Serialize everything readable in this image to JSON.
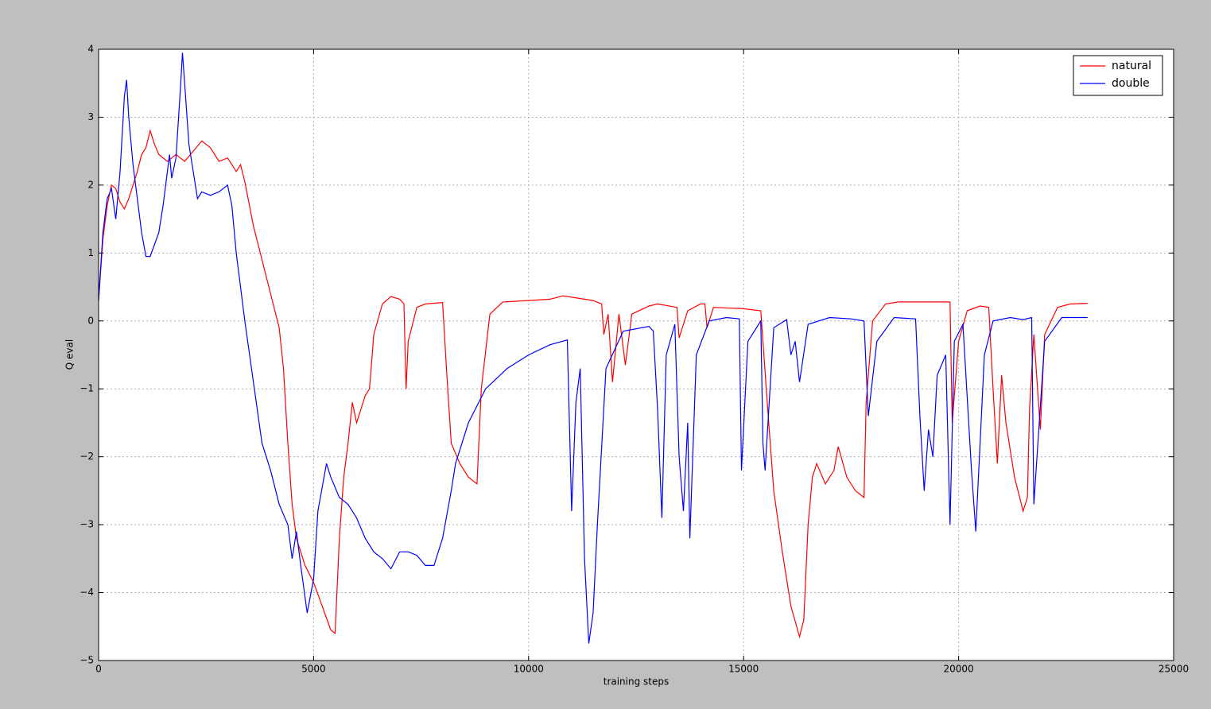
{
  "chart_data": {
    "type": "line",
    "xlabel": "training steps",
    "ylabel": "Q eval",
    "xlim": [
      0,
      25000
    ],
    "xticks": [
      0,
      5000,
      10000,
      15000,
      20000,
      25000
    ],
    "ylim": [
      -5,
      4
    ],
    "yticks": [
      {
        "value": -5,
        "label": "−5"
      },
      {
        "value": -4,
        "label": "−4"
      },
      {
        "value": -3,
        "label": "−3"
      },
      {
        "value": -2,
        "label": "−2"
      },
      {
        "value": -1,
        "label": "−1"
      },
      0,
      1,
      2,
      3,
      4
    ],
    "grid": true,
    "legend": "upper right",
    "series": [
      {
        "name": "natural",
        "color": "#ff0000",
        "x": [
          0,
          100,
          200,
          300,
          400,
          500,
          600,
          700,
          800,
          900,
          1000,
          1100,
          1200,
          1300,
          1400,
          1500,
          1600,
          1700,
          1800,
          1900,
          2000,
          2200,
          2400,
          2600,
          2800,
          3000,
          3200,
          3300,
          3400,
          3600,
          3800,
          4000,
          4200,
          4300,
          4400,
          4500,
          4600,
          4800,
          5000,
          5200,
          5400,
          5500,
          5600,
          5700,
          5800,
          5900,
          6000,
          6100,
          6200,
          6300,
          6400,
          6600,
          6800,
          7000,
          7100,
          7150,
          7200,
          7400,
          7600,
          8000,
          8100,
          8200,
          8400,
          8600,
          8800,
          8900,
          9100,
          9400,
          10000,
          10500,
          10800,
          11000,
          11500,
          11700,
          11750,
          11850,
          11950,
          12100,
          12250,
          12400,
          12800,
          13000,
          13450,
          13500,
          13700,
          14000,
          14100,
          14150,
          14300,
          15000,
          15400,
          15550,
          15700,
          15900,
          16100,
          16300,
          16400,
          16500,
          16600,
          16700,
          16900,
          17100,
          17200,
          17400,
          17600,
          17800,
          17850,
          18000,
          18300,
          18600,
          19000,
          19800,
          19850,
          20000,
          20200,
          20500,
          20700,
          20800,
          20900,
          21000,
          21100,
          21300,
          21500,
          21600,
          21650,
          21750,
          21900,
          22000,
          22300,
          22600,
          23000
        ],
        "values": [
          0.3,
          1.2,
          1.7,
          2.0,
          1.95,
          1.75,
          1.65,
          1.8,
          2.0,
          2.2,
          2.45,
          2.55,
          2.8,
          2.6,
          2.45,
          2.4,
          2.35,
          2.4,
          2.45,
          2.4,
          2.35,
          2.5,
          2.65,
          2.55,
          2.35,
          2.4,
          2.2,
          2.3,
          2.05,
          1.4,
          0.9,
          0.4,
          -0.1,
          -0.7,
          -1.8,
          -2.7,
          -3.2,
          -3.6,
          -3.85,
          -4.2,
          -4.55,
          -4.6,
          -3.2,
          -2.3,
          -1.8,
          -1.2,
          -1.5,
          -1.3,
          -1.1,
          -1.0,
          -0.2,
          0.25,
          0.36,
          0.32,
          0.25,
          -1.0,
          -0.3,
          0.2,
          0.25,
          0.27,
          -0.8,
          -1.8,
          -2.1,
          -2.3,
          -2.4,
          -1.0,
          0.1,
          0.28,
          0.3,
          0.32,
          0.37,
          0.35,
          0.3,
          0.25,
          -0.2,
          0.1,
          -0.9,
          0.1,
          -0.65,
          0.1,
          0.22,
          0.25,
          0.2,
          -0.25,
          0.15,
          0.25,
          0.25,
          -0.1,
          0.2,
          0.18,
          0.15,
          -1.2,
          -2.5,
          -3.4,
          -4.2,
          -4.65,
          -4.4,
          -3.0,
          -2.3,
          -2.1,
          -2.4,
          -2.2,
          -1.85,
          -2.3,
          -2.5,
          -2.6,
          -1.2,
          0.0,
          0.25,
          0.28,
          0.28,
          0.28,
          -1.5,
          -0.3,
          0.15,
          0.22,
          0.2,
          -1.0,
          -2.1,
          -0.8,
          -1.5,
          -2.3,
          -2.8,
          -2.6,
          -1.3,
          -0.2,
          -1.6,
          -0.2,
          0.2,
          0.25,
          0.26
        ]
      },
      {
        "name": "double",
        "color": "#0000ff",
        "x": [
          0,
          100,
          200,
          300,
          400,
          500,
          600,
          650,
          700,
          800,
          900,
          1000,
          1100,
          1200,
          1400,
          1500,
          1600,
          1650,
          1700,
          1800,
          1900,
          1950,
          2000,
          2100,
          2200,
          2300,
          2400,
          2600,
          2800,
          3000,
          3100,
          3200,
          3400,
          3600,
          3800,
          4000,
          4200,
          4400,
          4500,
          4600,
          4700,
          4850,
          5000,
          5100,
          5300,
          5400,
          5600,
          5800,
          6000,
          6200,
          6400,
          6600,
          6800,
          7000,
          7200,
          7400,
          7600,
          7800,
          8000,
          8200,
          8300,
          8600,
          9000,
          9500,
          10000,
          10500,
          10900,
          11000,
          11100,
          11200,
          11300,
          11400,
          11500,
          11600,
          11800,
          12200,
          12800,
          12900,
          13000,
          13100,
          13200,
          13400,
          13500,
          13600,
          13700,
          13750,
          13900,
          14200,
          14600,
          14900,
          14950,
          15100,
          15400,
          15450,
          15500,
          15700,
          16000,
          16100,
          16200,
          16300,
          16500,
          17000,
          17500,
          17800,
          17900,
          18100,
          18500,
          19000,
          19100,
          19200,
          19300,
          19400,
          19500,
          19700,
          19800,
          19900,
          20100,
          20300,
          20400,
          20600,
          20800,
          21200,
          21500,
          21700,
          21750,
          22000,
          22400,
          22800,
          23000
        ],
        "values": [
          0.3,
          1.3,
          1.8,
          1.95,
          1.5,
          2.2,
          3.3,
          3.55,
          3.0,
          2.3,
          1.8,
          1.3,
          0.95,
          0.95,
          1.3,
          1.7,
          2.2,
          2.45,
          2.1,
          2.4,
          3.4,
          3.95,
          3.5,
          2.6,
          2.2,
          1.8,
          1.9,
          1.85,
          1.9,
          2.0,
          1.7,
          1.0,
          0.0,
          -0.9,
          -1.8,
          -2.2,
          -2.7,
          -3.0,
          -3.5,
          -3.1,
          -3.6,
          -4.3,
          -3.8,
          -2.8,
          -2.1,
          -2.3,
          -2.6,
          -2.7,
          -2.9,
          -3.2,
          -3.4,
          -3.5,
          -3.65,
          -3.4,
          -3.4,
          -3.45,
          -3.6,
          -3.6,
          -3.2,
          -2.5,
          -2.1,
          -1.5,
          -1.0,
          -0.7,
          -0.5,
          -0.35,
          -0.28,
          -2.8,
          -1.2,
          -0.7,
          -3.5,
          -4.75,
          -4.3,
          -3.0,
          -0.7,
          -0.15,
          -0.08,
          -0.15,
          -1.3,
          -2.9,
          -0.5,
          -0.05,
          -2.0,
          -2.8,
          -1.5,
          -3.2,
          -0.5,
          0.0,
          0.05,
          0.03,
          -2.2,
          -0.3,
          0.0,
          -1.8,
          -2.2,
          -0.1,
          0.02,
          -0.5,
          -0.3,
          -0.9,
          -0.05,
          0.05,
          0.03,
          0.0,
          -1.4,
          -0.3,
          0.05,
          0.03,
          -1.4,
          -2.5,
          -1.6,
          -2.0,
          -0.8,
          -0.5,
          -3.0,
          -0.3,
          -0.05,
          -2.2,
          -3.1,
          -0.5,
          0.0,
          0.05,
          0.02,
          0.05,
          -2.7,
          -0.3,
          0.05,
          0.05,
          0.05
        ]
      }
    ]
  }
}
